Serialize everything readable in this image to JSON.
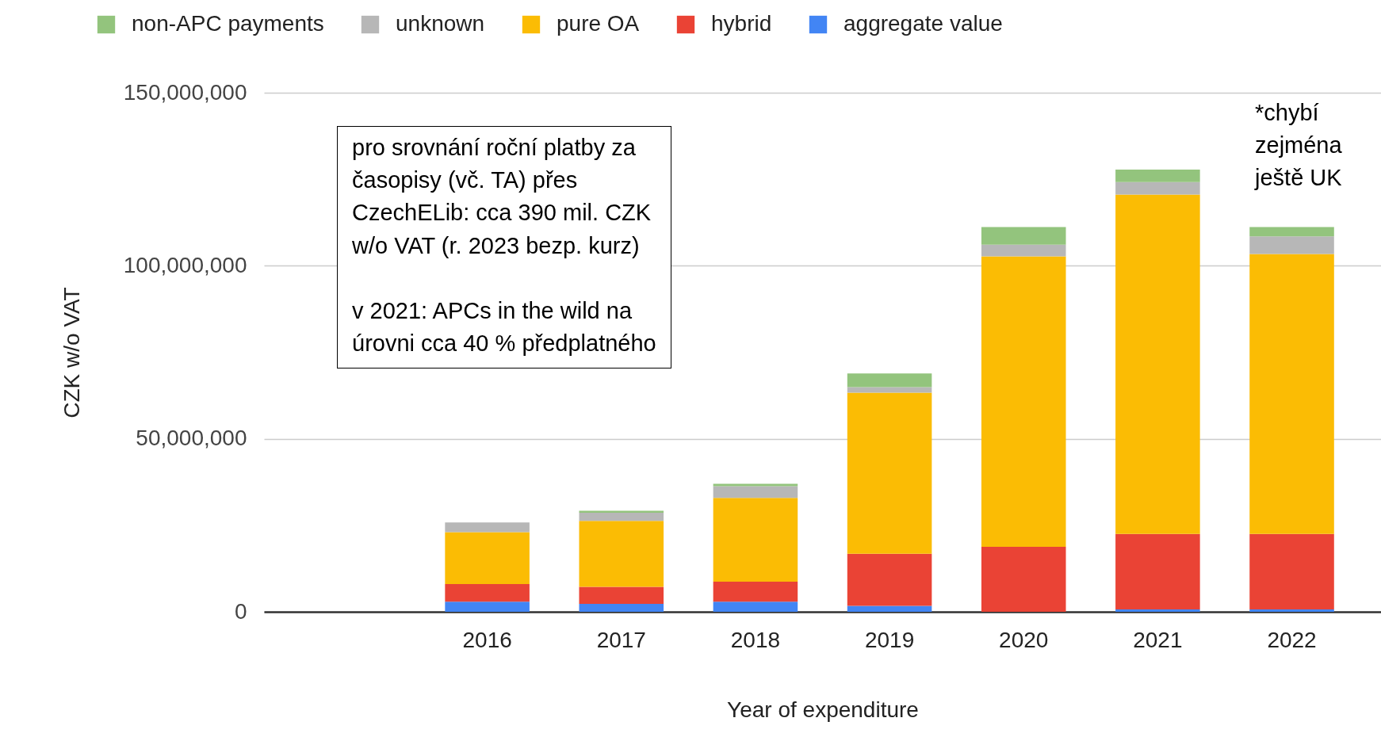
{
  "chart_data": {
    "type": "bar",
    "stacked": true,
    "xlabel": "Year of expenditure",
    "ylabel": "CZK w/o VAT",
    "categories": [
      null,
      "2016",
      "2017",
      "2018",
      "2019",
      "2020",
      "2021",
      "2022"
    ],
    "series": [
      {
        "name": "aggregate value",
        "color": "#4285f4",
        "values": [
          null,
          2900000,
          2300000,
          2900000,
          1700000,
          0,
          700000,
          700000
        ]
      },
      {
        "name": "hybrid",
        "color": "#ea4335",
        "values": [
          null,
          5100000,
          4900000,
          5800000,
          15100000,
          18800000,
          21800000,
          21800000
        ]
      },
      {
        "name": "pure OA",
        "color": "#fbbc04",
        "values": [
          null,
          15000000,
          19100000,
          24200000,
          46500000,
          83900000,
          98100000,
          80900000
        ]
      },
      {
        "name": "unknown",
        "color": "#b7b7b7",
        "values": [
          null,
          2800000,
          2300000,
          3400000,
          1600000,
          3400000,
          3600000,
          5100000
        ]
      },
      {
        "name": "non-APC payments",
        "color": "#93c47d",
        "values": [
          null,
          0,
          600000,
          700000,
          4000000,
          5100000,
          3600000,
          2700000
        ]
      }
    ],
    "ylim": [
      0,
      150000000
    ],
    "yticks": [
      0,
      {
        "value": 50000000,
        "label": "50,000,000"
      },
      {
        "value": 100000000,
        "label": "100,000,000"
      },
      {
        "value": 150000000,
        "label": "150,000,000"
      }
    ],
    "grid": "y",
    "legend": "top",
    "annotations": [
      "pro srovnání roční platby za\nčasopisy (vč. TA) přes\nCzechELib: cca 390 mil. CZK\nw/o VAT (r. 2023 bezp. kurz)\n\nv 2021: APCs in the wild na\núrovni cca 40 % předplatného",
      "*chybí\nzejména\nještě UK"
    ]
  }
}
